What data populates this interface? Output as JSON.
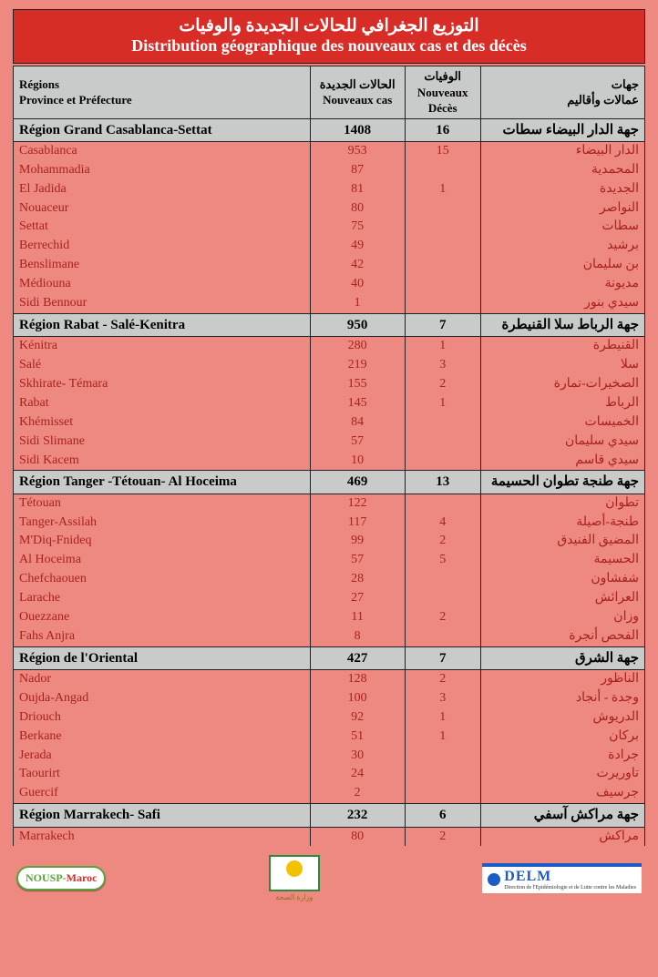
{
  "title": {
    "ar": "التوزيع الجغرافي للحالات الجديدة والوفيات",
    "fr": "Distribution géographique des nouveaux cas et des décès"
  },
  "headers": {
    "col1_fr_a": "Régions",
    "col1_fr_b": "Province et Préfecture",
    "col2_ar": "الحالات الجديدة",
    "col2_fr": "Nouveaux cas",
    "col3_ar": "الوفيات",
    "col3_fr_a": "Nouveaux",
    "col3_fr_b": "Décès",
    "col4_ar_a": "جهات",
    "col4_ar_b": "عمالات وأقاليم"
  },
  "colors": {
    "page_bg": "#ed8981",
    "title_bg": "#d82c27",
    "title_text": "#ffffff",
    "region_bg": "#c9cbca",
    "data_text": "#a8221e",
    "border": "#222222"
  },
  "regions": [
    {
      "fr": "Région Grand Casablanca-Settat",
      "cas": "1408",
      "deces": "16",
      "ar": "جهة الدار البيضاء سطات",
      "rows": [
        {
          "fr": "Casablanca",
          "cas": "953",
          "deces": "15",
          "ar": "الدار البيضاء"
        },
        {
          "fr": "Mohammadia",
          "cas": "87",
          "deces": "",
          "ar": "المحمدية"
        },
        {
          "fr": "El Jadida",
          "cas": "81",
          "deces": "1",
          "ar": "الجديدة"
        },
        {
          "fr": "Nouaceur",
          "cas": "80",
          "deces": "",
          "ar": "النواصر"
        },
        {
          "fr": "Settat",
          "cas": "75",
          "deces": "",
          "ar": "سطات"
        },
        {
          "fr": "Berrechid",
          "cas": "49",
          "deces": "",
          "ar": "برشيد"
        },
        {
          "fr": "Benslimane",
          "cas": "42",
          "deces": "",
          "ar": "بن سليمان"
        },
        {
          "fr": "Médiouna",
          "cas": "40",
          "deces": "",
          "ar": "مديونة"
        },
        {
          "fr": "Sidi Bennour",
          "cas": "1",
          "deces": "",
          "ar": "سيدي بنور"
        }
      ]
    },
    {
      "fr": "Région Rabat - Salé-Kenitra",
      "cas": "950",
      "deces": "7",
      "ar": "جهة الرباط سلا القنيطرة",
      "rows": [
        {
          "fr": "Kénitra",
          "cas": "280",
          "deces": "1",
          "ar": "القنيطرة"
        },
        {
          "fr": "Salé",
          "cas": "219",
          "deces": "3",
          "ar": "سلا"
        },
        {
          "fr": "Skhirate- Témara",
          "cas": "155",
          "deces": "2",
          "ar": "الصخيرات-تمارة"
        },
        {
          "fr": "Rabat",
          "cas": "145",
          "deces": "1",
          "ar": "الرباط"
        },
        {
          "fr": "Khémisset",
          "cas": "84",
          "deces": "",
          "ar": "الخميسات"
        },
        {
          "fr": "Sidi Slimane",
          "cas": "57",
          "deces": "",
          "ar": "سيدي سليمان"
        },
        {
          "fr": "Sidi Kacem",
          "cas": "10",
          "deces": "",
          "ar": "سيدي قاسم"
        }
      ]
    },
    {
      "fr": "Région Tanger -Tétouan- Al Hoceima",
      "cas": "469",
      "deces": "13",
      "ar": "جهة طنجة تطوان الحسيمة",
      "rows": [
        {
          "fr": "Tétouan",
          "cas": "122",
          "deces": "",
          "ar": "تطوان"
        },
        {
          "fr": "Tanger-Assilah",
          "cas": "117",
          "deces": "4",
          "ar": "طنجة-أصيلة"
        },
        {
          "fr": "M'Diq-Fnideq",
          "cas": "99",
          "deces": "2",
          "ar": "المضيق الفنيدق"
        },
        {
          "fr": "Al Hoceima",
          "cas": "57",
          "deces": "5",
          "ar": "الحسيمة"
        },
        {
          "fr": "Chefchaouen",
          "cas": "28",
          "deces": "",
          "ar": "شفشاون"
        },
        {
          "fr": "Larache",
          "cas": "27",
          "deces": "",
          "ar": "العرائش"
        },
        {
          "fr": "Ouezzane",
          "cas": "11",
          "deces": "2",
          "ar": "وزان"
        },
        {
          "fr": "Fahs Anjra",
          "cas": "8",
          "deces": "",
          "ar": "الفحص أنجرة"
        }
      ]
    },
    {
      "fr": "Région de l'Oriental",
      "cas": "427",
      "deces": "7",
      "ar": "جهة الشرق",
      "rows": [
        {
          "fr": "Nador",
          "cas": "128",
          "deces": "2",
          "ar": "الناظور"
        },
        {
          "fr": "Oujda-Angad",
          "cas": "100",
          "deces": "3",
          "ar": "وجدة - أنجاد"
        },
        {
          "fr": "Driouch",
          "cas": "92",
          "deces": "1",
          "ar": "الدريوش"
        },
        {
          "fr": "Berkane",
          "cas": "51",
          "deces": "1",
          "ar": "بركان"
        },
        {
          "fr": "Jerada",
          "cas": "30",
          "deces": "",
          "ar": "جرادة"
        },
        {
          "fr": "Taourirt",
          "cas": "24",
          "deces": "",
          "ar": "تاوريرت"
        },
        {
          "fr": "Guercif",
          "cas": "2",
          "deces": "",
          "ar": "جرسيف"
        }
      ]
    },
    {
      "fr": "Région Marrakech- Safi",
      "cas": "232",
      "deces": "6",
      "ar": "جهة مراكش آسفي",
      "rows": [
        {
          "fr": "Marrakech",
          "cas": "80",
          "deces": "2",
          "ar": "مراكش"
        }
      ]
    }
  ],
  "footer": {
    "nousp": "NOUSP-",
    "nousp_red": "Maroc",
    "center": "وزارة الصحة",
    "delm": "DELM",
    "delm_sub": "Direction de l'Epidémiologie et de Lutte contre les Maladies"
  }
}
